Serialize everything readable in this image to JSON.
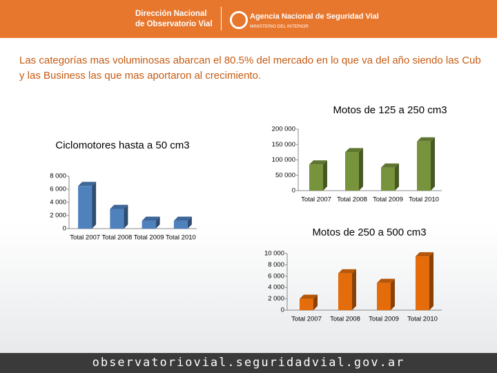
{
  "header": {
    "left_line1": "Dirección Nacional",
    "left_line2": "de Observatorio Vial",
    "right_title": "Agencia Nacional de Seguridad Vial",
    "right_subtitle": "MINISTERIO DEL INTERIOR"
  },
  "intro": "Las categorías mas voluminosas abarcan el 80.5% del mercado en lo que va del año siendo las Cub y las Business las que mas aportaron al crecimiento.",
  "footer": "observatoriovial.seguridadvial.gov.ar",
  "chart_data": [
    {
      "type": "bar",
      "title": "Ciclomotores hasta a 50 cm3",
      "categories": [
        "Total 2007",
        "Total 2008",
        "Total 2009",
        "Total 2010"
      ],
      "values": [
        6500,
        3000,
        1200,
        1200
      ],
      "color": "#4f81bd",
      "ylim": [
        0,
        8000
      ],
      "yticks": [
        0,
        {
          "value": 2000,
          "label": "2 000"
        },
        {
          "value": 4000,
          "label": "4 000"
        },
        {
          "value": 6000,
          "label": "6 000"
        },
        {
          "value": 8000,
          "label": "8 000"
        }
      ]
    },
    {
      "type": "bar",
      "title": "Motos de 125 a 250 cm3",
      "categories": [
        "Total 2007",
        "Total 2008",
        "Total 2009",
        "Total 2010"
      ],
      "values": [
        85000,
        125000,
        75000,
        160000
      ],
      "color": "#77933c",
      "ylim": [
        0,
        200000
      ],
      "yticks": [
        0,
        {
          "value": 50000,
          "label": "50 000"
        },
        {
          "value": 100000,
          "label": "100 000"
        },
        {
          "value": 150000,
          "label": "150 000"
        },
        {
          "value": 200000,
          "label": "200 000"
        }
      ]
    },
    {
      "type": "bar",
      "title": "Motos de 250 a 500 cm3",
      "categories": [
        "Total 2007",
        "Total 2008",
        "Total 2009",
        "Total 2010"
      ],
      "values": [
        2000,
        6500,
        4800,
        9500
      ],
      "color": "#e46c0a",
      "ylim": [
        0,
        10000
      ],
      "yticks": [
        0,
        {
          "value": 2000,
          "label": "2 000"
        },
        {
          "value": 4000,
          "label": "4 000"
        },
        {
          "value": 6000,
          "label": "6 000"
        },
        {
          "value": 8000,
          "label": "8 000"
        },
        {
          "value": 10000,
          "label": "10 000"
        }
      ]
    }
  ]
}
